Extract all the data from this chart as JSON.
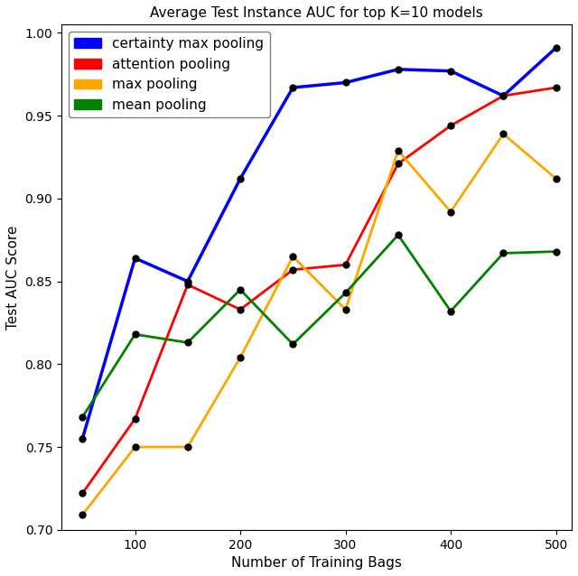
{
  "title": "Average Test Instance AUC for top K=10 models",
  "xlabel": "Number of Training Bags",
  "ylabel": "Test AUC Score",
  "ylim": [
    0.7,
    1.005
  ],
  "xlim": [
    30,
    515
  ],
  "xticks": [
    100,
    200,
    300,
    400,
    500
  ],
  "yticks": [
    0.7,
    0.75,
    0.8,
    0.85,
    0.9,
    0.95,
    1.0
  ],
  "series": [
    {
      "label": "certainty max pooling",
      "color": "blue",
      "linewidth": 2.5,
      "x": [
        50,
        100,
        150,
        200,
        250,
        300,
        350,
        400,
        450,
        500
      ],
      "y": [
        0.755,
        0.864,
        0.85,
        0.912,
        0.967,
        0.97,
        0.978,
        0.977,
        0.962,
        0.991
      ]
    },
    {
      "label": "attention pooling",
      "color": "red",
      "linewidth": 2.0,
      "x": [
        50,
        100,
        150,
        200,
        250,
        300,
        350,
        400,
        450,
        500
      ],
      "y": [
        0.722,
        0.767,
        0.848,
        0.833,
        0.857,
        0.86,
        0.921,
        0.944,
        0.962,
        0.967
      ]
    },
    {
      "label": "max pooling",
      "color": "orange",
      "linewidth": 2.0,
      "x": [
        50,
        100,
        150,
        200,
        250,
        300,
        350,
        400,
        450,
        500
      ],
      "y": [
        0.709,
        0.75,
        0.75,
        0.804,
        0.865,
        0.833,
        0.929,
        0.892,
        0.939,
        0.912
      ]
    },
    {
      "label": "mean pooling",
      "color": "green",
      "linewidth": 2.0,
      "x": [
        50,
        100,
        150,
        200,
        250,
        300,
        350,
        400,
        450,
        500
      ],
      "y": [
        0.768,
        0.818,
        0.813,
        0.845,
        0.812,
        0.843,
        0.878,
        0.832,
        0.867,
        0.868
      ]
    }
  ],
  "marker": "o",
  "marker_color": "black",
  "marker_size": 5,
  "legend_loc": "upper left",
  "background_color": "#ffffff",
  "title_fontsize": 11,
  "axis_label_fontsize": 11,
  "tick_fontsize": 10,
  "legend_fontsize": 11
}
